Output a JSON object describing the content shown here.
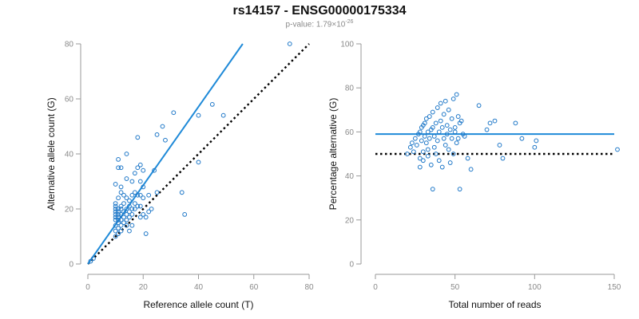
{
  "title": "rs14157 - ENSG00000175334",
  "subtitle": {
    "prefix": "p-value: 1.79×10",
    "exponent": "-26"
  },
  "colors": {
    "points": "#1f78c8",
    "fit_line": "#1f8ad8",
    "reference_line": "#000000",
    "axis": "#9a9a9a"
  },
  "chart_data": [
    {
      "type": "scatter",
      "xlabel": "Reference allele count (T)",
      "ylabel": "Alternative allele count (G)",
      "xlim": [
        0,
        80
      ],
      "ylim": [
        0,
        80
      ],
      "xticks": [
        0,
        20,
        40,
        60,
        80
      ],
      "yticks": [
        0,
        20,
        40,
        60,
        80
      ],
      "x_tick_labels": [
        "0",
        "20",
        "40",
        "60",
        "80"
      ],
      "y_tick_labels": [
        "0",
        "20",
        "40",
        "60",
        "80"
      ],
      "grid": false,
      "fit_line": {
        "style": "solid",
        "from": [
          0,
          0
        ],
        "to": [
          56,
          80
        ]
      },
      "reference_line": {
        "style": "dotted",
        "from": [
          0,
          0
        ],
        "to": [
          80,
          80
        ]
      },
      "points": [
        [
          1,
          1
        ],
        [
          2,
          2
        ],
        [
          10,
          10
        ],
        [
          10,
          12
        ],
        [
          10,
          14
        ],
        [
          10,
          16
        ],
        [
          10,
          17
        ],
        [
          10,
          18
        ],
        [
          10,
          19
        ],
        [
          10,
          20
        ],
        [
          10,
          21
        ],
        [
          10,
          22
        ],
        [
          10,
          29
        ],
        [
          11,
          11
        ],
        [
          11,
          13
        ],
        [
          11,
          15
        ],
        [
          11,
          16
        ],
        [
          11,
          17
        ],
        [
          11,
          18
        ],
        [
          11,
          19
        ],
        [
          11,
          20
        ],
        [
          11,
          24
        ],
        [
          11,
          35
        ],
        [
          11,
          38
        ],
        [
          12,
          12
        ],
        [
          12,
          14
        ],
        [
          12,
          16
        ],
        [
          12,
          18
        ],
        [
          12,
          20
        ],
        [
          12,
          21
        ],
        [
          12,
          26
        ],
        [
          12,
          28
        ],
        [
          12,
          35
        ],
        [
          13,
          15
        ],
        [
          13,
          17
        ],
        [
          13,
          19
        ],
        [
          13,
          22
        ],
        [
          13,
          25
        ],
        [
          14,
          14
        ],
        [
          14,
          16
        ],
        [
          14,
          18
        ],
        [
          14,
          20
        ],
        [
          14,
          24
        ],
        [
          14,
          31
        ],
        [
          14,
          40
        ],
        [
          15,
          12
        ],
        [
          15,
          17
        ],
        [
          15,
          19
        ],
        [
          15,
          21
        ],
        [
          15,
          23
        ],
        [
          16,
          14
        ],
        [
          16,
          18
        ],
        [
          16,
          20
        ],
        [
          16,
          25
        ],
        [
          16,
          30
        ],
        [
          17,
          20
        ],
        [
          17,
          22
        ],
        [
          17,
          26
        ],
        [
          17,
          33
        ],
        [
          18,
          21
        ],
        [
          18,
          25
        ],
        [
          18,
          35
        ],
        [
          18,
          46
        ],
        [
          19,
          17
        ],
        [
          19,
          21
        ],
        [
          19,
          25
        ],
        [
          19,
          30
        ],
        [
          19,
          36
        ],
        [
          20,
          18
        ],
        [
          20,
          24
        ],
        [
          20,
          28
        ],
        [
          20,
          34
        ],
        [
          21,
          11
        ],
        [
          21,
          17
        ],
        [
          22,
          19
        ],
        [
          22,
          25
        ],
        [
          23,
          20
        ],
        [
          24,
          34
        ],
        [
          25,
          26
        ],
        [
          25,
          47
        ],
        [
          27,
          50
        ],
        [
          28,
          45
        ],
        [
          31,
          55
        ],
        [
          34,
          26
        ],
        [
          35,
          18
        ],
        [
          40,
          37
        ],
        [
          40,
          54
        ],
        [
          45,
          58
        ],
        [
          49,
          54
        ],
        [
          73,
          80
        ]
      ]
    },
    {
      "type": "scatter",
      "xlabel": "Total number of reads",
      "ylabel": "Percentage alternative (G)",
      "xlim": [
        0,
        150
      ],
      "ylim": [
        0,
        100
      ],
      "xticks": [
        0,
        50,
        100,
        150
      ],
      "yticks": [
        0,
        20,
        40,
        60,
        80,
        100
      ],
      "x_tick_labels": [
        "0",
        "50",
        "100",
        "150"
      ],
      "y_tick_labels": [
        "0",
        "20",
        "40",
        "60",
        "80",
        "100"
      ],
      "grid": false,
      "fit_line": {
        "style": "solid",
        "y": 59
      },
      "reference_line": {
        "style": "dotted",
        "y": 50
      },
      "points": [
        [
          20,
          50
        ],
        [
          22,
          53
        ],
        [
          23,
          55
        ],
        [
          24,
          51
        ],
        [
          25,
          57
        ],
        [
          26,
          54
        ],
        [
          27,
          59
        ],
        [
          28,
          60
        ],
        [
          28,
          44
        ],
        [
          28,
          48
        ],
        [
          29,
          62
        ],
        [
          29,
          56
        ],
        [
          30,
          63
        ],
        [
          30,
          51
        ],
        [
          30,
          47
        ],
        [
          31,
          64
        ],
        [
          31,
          58
        ],
        [
          32,
          55
        ],
        [
          32,
          66
        ],
        [
          33,
          60
        ],
        [
          33,
          52
        ],
        [
          33,
          49
        ],
        [
          34,
          67
        ],
        [
          34,
          57
        ],
        [
          35,
          61
        ],
        [
          35,
          45
        ],
        [
          36,
          34
        ],
        [
          36,
          69
        ],
        [
          36,
          62
        ],
        [
          37,
          58
        ],
        [
          37,
          53
        ],
        [
          38,
          64
        ],
        [
          38,
          50
        ],
        [
          39,
          71
        ],
        [
          39,
          56
        ],
        [
          40,
          60
        ],
        [
          40,
          47
        ],
        [
          41,
          73
        ],
        [
          41,
          65
        ],
        [
          42,
          62
        ],
        [
          42,
          44
        ],
        [
          43,
          68
        ],
        [
          43,
          57
        ],
        [
          44,
          54
        ],
        [
          44,
          74
        ],
        [
          45,
          59
        ],
        [
          45,
          63
        ],
        [
          46,
          70
        ],
        [
          46,
          52
        ],
        [
          47,
          61
        ],
        [
          47,
          46
        ],
        [
          48,
          66
        ],
        [
          48,
          57
        ],
        [
          49,
          75
        ],
        [
          49,
          50
        ],
        [
          50,
          60
        ],
        [
          50,
          62
        ],
        [
          51,
          77
        ],
        [
          51,
          55
        ],
        [
          52,
          67
        ],
        [
          52,
          57
        ],
        [
          53,
          64
        ],
        [
          53,
          34
        ],
        [
          54,
          65
        ],
        [
          55,
          59
        ],
        [
          56,
          58
        ],
        [
          58,
          48
        ],
        [
          60,
          43
        ],
        [
          65,
          72
        ],
        [
          70,
          61
        ],
        [
          72,
          64
        ],
        [
          75,
          65
        ],
        [
          78,
          54
        ],
        [
          80,
          48
        ],
        [
          88,
          64
        ],
        [
          92,
          57
        ],
        [
          100,
          53
        ],
        [
          101,
          56
        ],
        [
          152,
          52
        ]
      ]
    }
  ]
}
